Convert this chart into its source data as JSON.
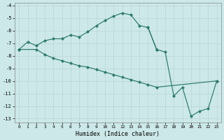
{
  "xlabel": "Humidex (Indice chaleur)",
  "bg_color": "#cce8e8",
  "grid_color": "#b8d4d4",
  "line_color": "#2a7a6a",
  "upper_x": [
    0,
    1,
    2,
    3,
    4,
    5,
    6,
    7,
    8,
    9,
    10,
    11,
    12,
    13,
    14,
    15,
    16
  ],
  "upper_y": [
    -7.5,
    -6.9,
    -7.2,
    -6.8,
    -6.65,
    -6.65,
    -6.35,
    -6.5,
    -6.1,
    -5.6,
    -5.2,
    -4.85,
    -4.6,
    -4.75,
    -5.6,
    -5.75,
    -7.5
  ],
  "lower_x": [
    0,
    2,
    3,
    4,
    5,
    6,
    7,
    8,
    9,
    10,
    11,
    12,
    13,
    14,
    15,
    16,
    23
  ],
  "lower_y": [
    -7.5,
    -7.5,
    -7.9,
    -8.2,
    -8.4,
    -8.6,
    -8.8,
    -8.9,
    -9.1,
    -9.3,
    -9.5,
    -9.7,
    -9.9,
    -10.1,
    -10.3,
    -10.5,
    -10.0
  ],
  "right_x": [
    15,
    16,
    17,
    18,
    19,
    20,
    21,
    22,
    23
  ],
  "right_y": [
    -5.75,
    -7.5,
    -7.7,
    -11.2,
    -10.5,
    -12.8,
    -12.4,
    -12.2,
    -10.0
  ],
  "xlim": [
    -0.5,
    23.5
  ],
  "ylim": [
    -13.3,
    -3.8
  ],
  "xticks": [
    0,
    1,
    2,
    3,
    4,
    5,
    6,
    7,
    8,
    9,
    10,
    11,
    12,
    13,
    14,
    15,
    16,
    17,
    18,
    19,
    20,
    21,
    22,
    23
  ],
  "yticks": [
    -4,
    -5,
    -6,
    -7,
    -8,
    -9,
    -10,
    -11,
    -12,
    -13
  ]
}
